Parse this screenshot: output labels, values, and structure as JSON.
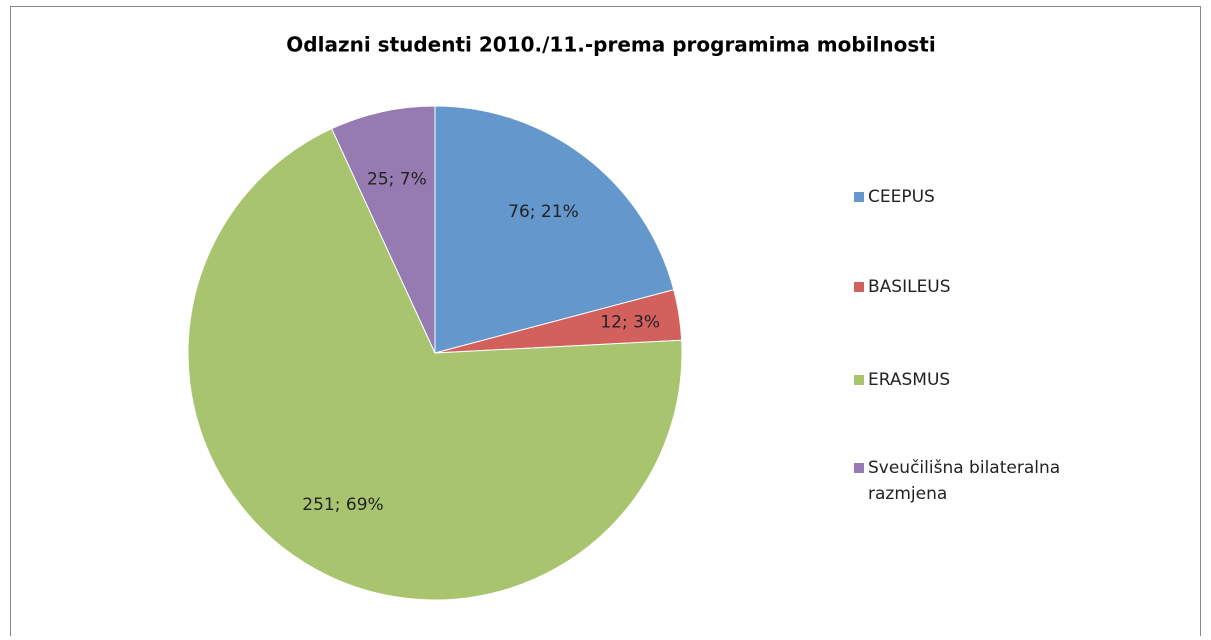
{
  "chart_data": {
    "type": "pie",
    "title": "Odlazni studenti  2010./11.-prema programima mobilnosti",
    "categories": [
      "CEEPUS",
      "BASILEUS",
      "ERASMUS",
      "Sveučilišna bilateralna razmjena"
    ],
    "values": [
      76,
      12,
      251,
      25
    ],
    "value_labels": [
      "76; 21%",
      "12; 3%",
      "251; 69%",
      "25; 7%"
    ],
    "colors": [
      "#6497cb",
      "#d2605d",
      "#a8c46f",
      "#957bb1"
    ],
    "legend": "right"
  }
}
